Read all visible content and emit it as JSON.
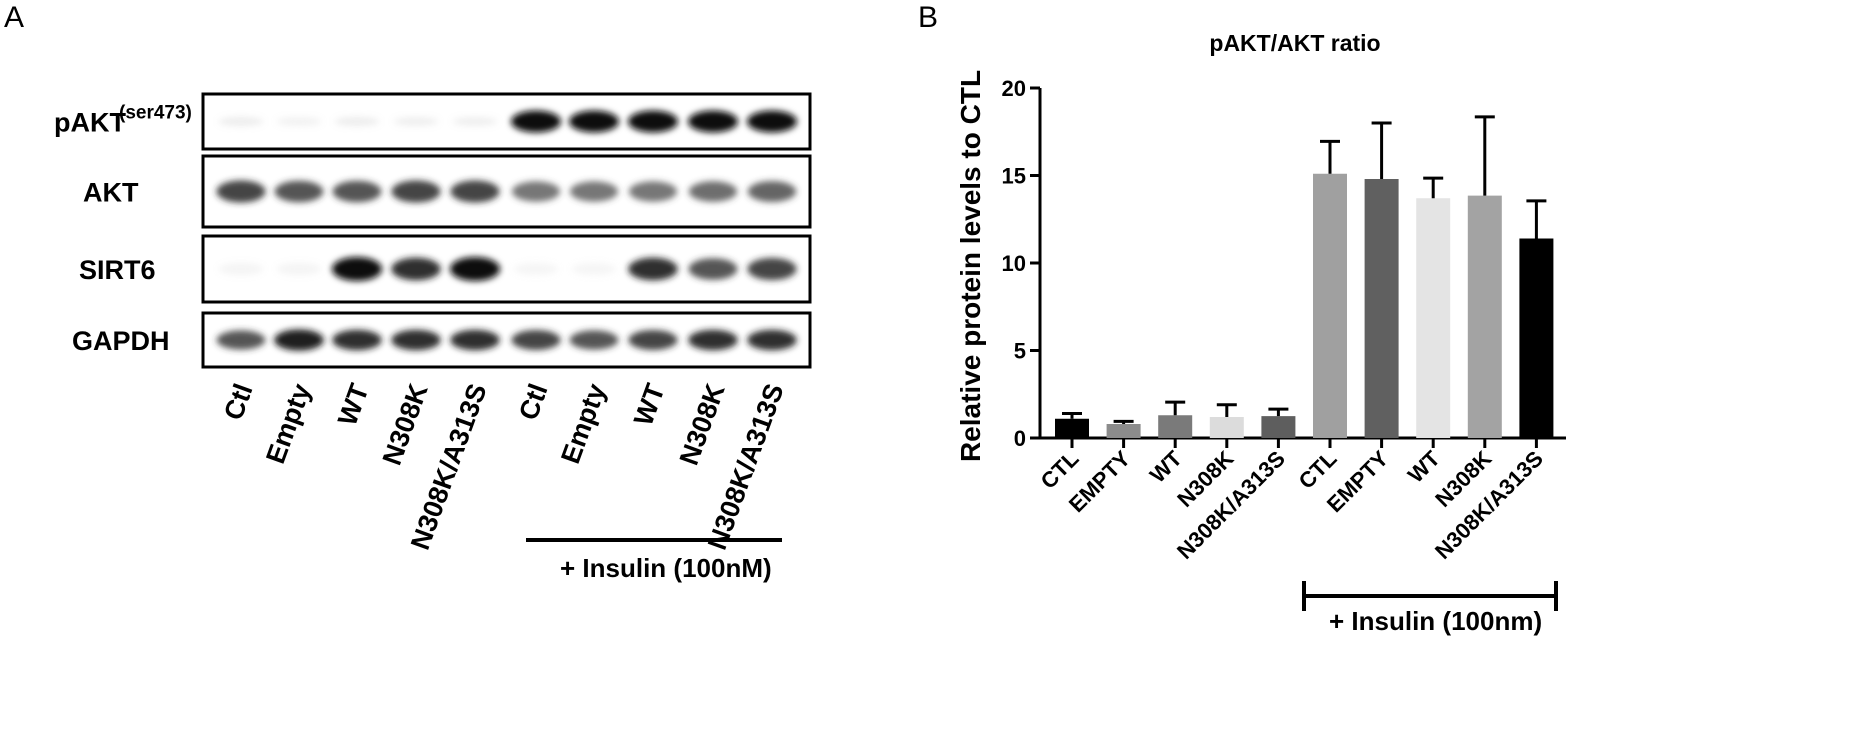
{
  "figure": {
    "panel_a_letter": "A",
    "panel_b_letter": "B"
  },
  "blot": {
    "rows": [
      {
        "label": "pAKT",
        "superscript": "(ser473)",
        "intensities": [
          0.12,
          0.08,
          0.12,
          0.1,
          0.1,
          1.0,
          1.0,
          1.0,
          1.0,
          1.0
        ]
      },
      {
        "label": "AKT",
        "superscript": "",
        "intensities": [
          0.85,
          0.8,
          0.8,
          0.85,
          0.85,
          0.7,
          0.7,
          0.7,
          0.72,
          0.75
        ]
      },
      {
        "label": "SIRT6",
        "superscript": "",
        "intensities": [
          0.04,
          0.04,
          1.0,
          0.9,
          1.0,
          0.03,
          0.03,
          0.9,
          0.8,
          0.85
        ]
      },
      {
        "label": "GAPDH",
        "superscript": "",
        "intensities": [
          0.8,
          0.95,
          0.9,
          0.9,
          0.9,
          0.85,
          0.8,
          0.85,
          0.9,
          0.9
        ]
      }
    ],
    "lanes": [
      "Ctl",
      "Empty",
      "WT",
      "N308K",
      "N308K/A313S",
      "Ctl",
      "Empty",
      "WT",
      "N308K",
      "N308K/A313S"
    ],
    "condition_label": "+ Insulin (100nM)"
  },
  "chart_data": {
    "type": "bar",
    "title": "pAKT/AKT ratio",
    "xlabel": "",
    "ylabel": "Relative protein levels to CTL",
    "ylim": [
      0,
      20
    ],
    "yticks": [
      0,
      5,
      10,
      15,
      20
    ],
    "categories": [
      "CTL",
      "EMPTY",
      "WT",
      "N308K",
      "N308K/A313S",
      "CTL",
      "EMPTY",
      "WT",
      "N308K",
      "N308K/A313S"
    ],
    "values": [
      1.1,
      0.8,
      1.3,
      1.2,
      1.25,
      15.1,
      14.8,
      13.7,
      13.85,
      11.4
    ],
    "errors": [
      0.3,
      0.15,
      0.75,
      0.7,
      0.4,
      1.85,
      3.2,
      1.15,
      4.5,
      2.15
    ],
    "colors": [
      "#000000",
      "#8c8c8c",
      "#7a7a7a",
      "#dcdcdc",
      "#5e5e5e",
      "#a0a0a0",
      "#606060",
      "#e4e4e4",
      "#a3a3a3",
      "#000000"
    ],
    "grid": false,
    "condition_label": "+ Insulin (100nm)"
  }
}
